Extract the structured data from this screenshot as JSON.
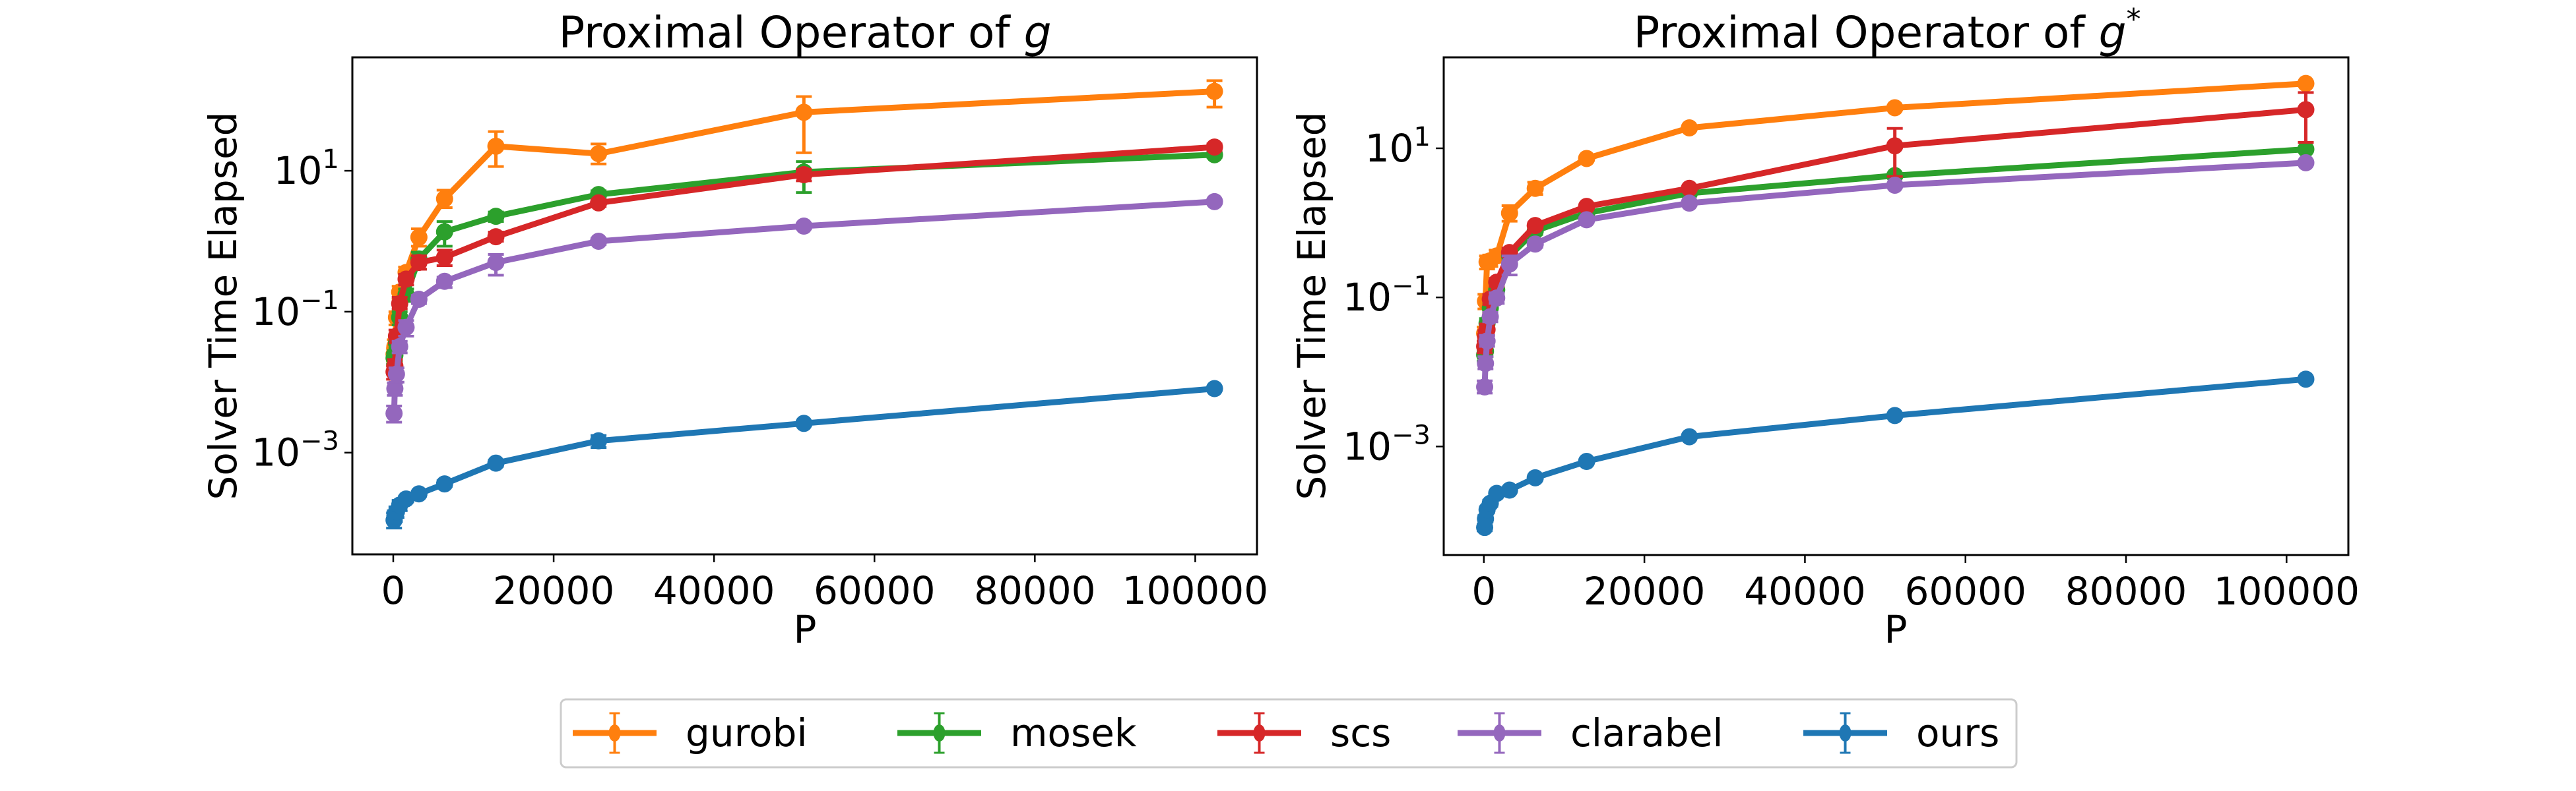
{
  "chart_data": [
    {
      "type": "line",
      "title": "Proximal Operator of g",
      "title_main": "Proximal Operator of ",
      "title_var": "g",
      "title_sup": "",
      "xlabel": "P",
      "ylabel": "Solver Time Elapsed",
      "yscale": "log",
      "xlim": [
        -5100,
        107700
      ],
      "ylim": [
        3.6e-05,
        407
      ],
      "xticks": [
        0,
        20000,
        40000,
        60000,
        80000,
        100000
      ],
      "xtick_labels": [
        "0",
        "20000",
        "40000",
        "60000",
        "80000",
        "100000"
      ],
      "yticks": [
        10,
        0.1,
        0.001
      ],
      "ytick_labels": [
        {
          "base": "10",
          "exp": "1"
        },
        {
          "base": "10",
          "exp": "−1"
        },
        {
          "base": "10",
          "exp": "−3"
        }
      ],
      "grid": false,
      "x": [
        100,
        200,
        400,
        800,
        1600,
        3200,
        6400,
        12800,
        25600,
        51200,
        102400
      ],
      "series": [
        {
          "name": "gurobi",
          "color": "#ff7f0e",
          "values": [
            0.025,
            0.032,
            0.083,
            0.19,
            0.36,
            1.14,
            4.0,
            22.3,
            17.5,
            67.6,
            134
          ],
          "err_low": [
            0.02,
            0.025,
            0.065,
            0.15,
            0.3,
            0.85,
            3.0,
            11.5,
            12.5,
            18,
            80
          ],
          "err_high": [
            0.03,
            0.04,
            0.1,
            0.23,
            0.43,
            1.5,
            5.3,
            36,
            24,
            113,
            190
          ]
        },
        {
          "name": "mosek",
          "color": "#2ca02c",
          "values": [
            0.022,
            0.024,
            0.036,
            0.083,
            0.175,
            0.56,
            1.36,
            2.26,
            4.6,
            9.6,
            16.9
          ],
          "err_low": [
            0.018,
            0.02,
            0.03,
            0.065,
            0.14,
            0.4,
            0.85,
            1.9,
            4.0,
            4.9,
            15.5
          ],
          "err_high": [
            0.026,
            0.028,
            0.043,
            0.1,
            0.21,
            0.7,
            1.9,
            2.6,
            5.2,
            13.5,
            18.5
          ]
        },
        {
          "name": "scs",
          "color": "#d62728",
          "values": [
            0.014,
            0.017,
            0.045,
            0.13,
            0.29,
            0.5,
            0.59,
            1.16,
            3.5,
            8.8,
            21.7
          ],
          "err_low": [
            0.011,
            0.013,
            0.036,
            0.11,
            0.24,
            0.4,
            0.45,
            1.0,
            3.1,
            7.2,
            19.5
          ],
          "err_high": [
            0.017,
            0.021,
            0.055,
            0.16,
            0.34,
            0.62,
            0.75,
            1.35,
            3.9,
            10.5,
            24
          ]
        },
        {
          "name": "clarabel",
          "color": "#9467bd",
          "values": [
            0.0036,
            0.0081,
            0.013,
            0.032,
            0.06,
            0.15,
            0.27,
            0.5,
            1.0,
            1.64,
            3.65
          ],
          "err_low": [
            0.0027,
            0.0065,
            0.01,
            0.026,
            0.045,
            0.13,
            0.22,
            0.33,
            0.9,
            1.5,
            3.4
          ],
          "err_high": [
            0.0046,
            0.0098,
            0.016,
            0.038,
            0.075,
            0.17,
            0.31,
            0.65,
            1.1,
            1.8,
            3.9
          ]
        },
        {
          "name": "ours",
          "color": "#1f77b4",
          "values": [
            0.00011,
            0.000126,
            0.000145,
            0.00018,
            0.00022,
            0.00026,
            0.00036,
            0.00071,
            0.00147,
            0.0026,
            0.0081
          ],
          "err_low": [
            8.5e-05,
            0.000105,
            0.00012,
            0.00015,
            0.0002,
            0.00024,
            0.00033,
            0.00064,
            0.00118,
            0.0024,
            0.0077
          ],
          "err_high": [
            0.00014,
            0.00015,
            0.00017,
            0.00021,
            0.00024,
            0.00028,
            0.0004,
            0.00078,
            0.00175,
            0.0028,
            0.0086
          ]
        }
      ]
    },
    {
      "type": "line",
      "title": "Proximal Operator of g*",
      "title_main": "Proximal Operator of ",
      "title_var": "g",
      "title_sup": "*",
      "xlabel": "P",
      "ylabel": "Solver Time Elapsed",
      "yscale": "log",
      "xlim": [
        -5000,
        107700
      ],
      "ylim": [
        3.5e-05,
        166
      ],
      "xticks": [
        0,
        20000,
        40000,
        60000,
        80000,
        100000
      ],
      "xtick_labels": [
        "0",
        "20000",
        "40000",
        "60000",
        "80000",
        "100000"
      ],
      "yticks": [
        10,
        0.1,
        0.001
      ],
      "ytick_labels": [
        {
          "base": "10",
          "exp": "1"
        },
        {
          "base": "10",
          "exp": "−1"
        },
        {
          "base": "10",
          "exp": "−3"
        }
      ],
      "grid": false,
      "x": [
        100,
        200,
        400,
        800,
        1600,
        3200,
        6400,
        12800,
        25600,
        51200,
        102400
      ],
      "series": [
        {
          "name": "gurobi",
          "color": "#ff7f0e",
          "values": [
            0.033,
            0.089,
            0.3,
            0.31,
            0.36,
            1.35,
            2.9,
            7.3,
            18.8,
            35,
            74
          ],
          "err_low": [
            0.026,
            0.07,
            0.24,
            0.26,
            0.3,
            1.05,
            2.4,
            6.8,
            18,
            33,
            70
          ],
          "err_high": [
            0.04,
            0.11,
            0.36,
            0.37,
            0.43,
            1.7,
            3.5,
            7.8,
            19.6,
            37,
            78
          ]
        },
        {
          "name": "mosek",
          "color": "#2ca02c",
          "values": [
            0.017,
            0.019,
            0.045,
            0.072,
            0.126,
            0.36,
            0.78,
            1.35,
            2.5,
            4.3,
            9.7
          ],
          "err_low": [
            0.014,
            0.016,
            0.038,
            0.062,
            0.11,
            0.32,
            0.7,
            1.25,
            2.35,
            4.1,
            9.2
          ],
          "err_high": [
            0.02,
            0.022,
            0.052,
            0.082,
            0.145,
            0.4,
            0.86,
            1.45,
            2.65,
            4.5,
            10.2
          ]
        },
        {
          "name": "scs",
          "color": "#d62728",
          "values": [
            0.022,
            0.03,
            0.037,
            0.095,
            0.16,
            0.4,
            0.92,
            1.66,
            2.9,
            10.8,
            33
          ],
          "err_low": [
            0.018,
            0.025,
            0.031,
            0.08,
            0.14,
            0.35,
            0.84,
            1.55,
            2.75,
            4.2,
            12
          ],
          "err_high": [
            0.026,
            0.036,
            0.044,
            0.11,
            0.18,
            0.46,
            1.0,
            1.78,
            3.05,
            18.5,
            56
          ]
        },
        {
          "name": "clarabel",
          "color": "#9467bd",
          "values": [
            0.0063,
            0.013,
            0.026,
            0.055,
            0.098,
            0.28,
            0.52,
            1.1,
            1.84,
            3.2,
            6.4
          ],
          "err_low": [
            0.0052,
            0.011,
            0.022,
            0.047,
            0.083,
            0.2,
            0.47,
            1.02,
            1.72,
            3.05,
            6.1
          ],
          "err_high": [
            0.0076,
            0.016,
            0.031,
            0.063,
            0.115,
            0.36,
            0.58,
            1.18,
            1.97,
            3.35,
            6.7
          ]
        },
        {
          "name": "ours",
          "color": "#1f77b4",
          "values": [
            8.2e-05,
            0.000107,
            0.000142,
            0.000173,
            0.000235,
            0.00026,
            0.00038,
            0.00063,
            0.00135,
            0.0026,
            0.008
          ],
          "err_low": [
            7.4e-05,
            9.7e-05,
            0.00013,
            0.000158,
            0.000218,
            0.000245,
            0.000355,
            0.0006,
            0.0013,
            0.0025,
            0.0077
          ],
          "err_high": [
            9e-05,
            0.000118,
            0.000155,
            0.00019,
            0.000252,
            0.000275,
            0.000405,
            0.00066,
            0.0014,
            0.0027,
            0.0083
          ]
        }
      ]
    }
  ],
  "legend": {
    "placement": "bottom-center",
    "entries": [
      {
        "label": "gurobi",
        "color": "#ff7f0e"
      },
      {
        "label": "mosek",
        "color": "#2ca02c"
      },
      {
        "label": "scs",
        "color": "#d62728"
      },
      {
        "label": "clarabel",
        "color": "#9467bd"
      },
      {
        "label": "ours",
        "color": "#1f77b4"
      }
    ]
  }
}
